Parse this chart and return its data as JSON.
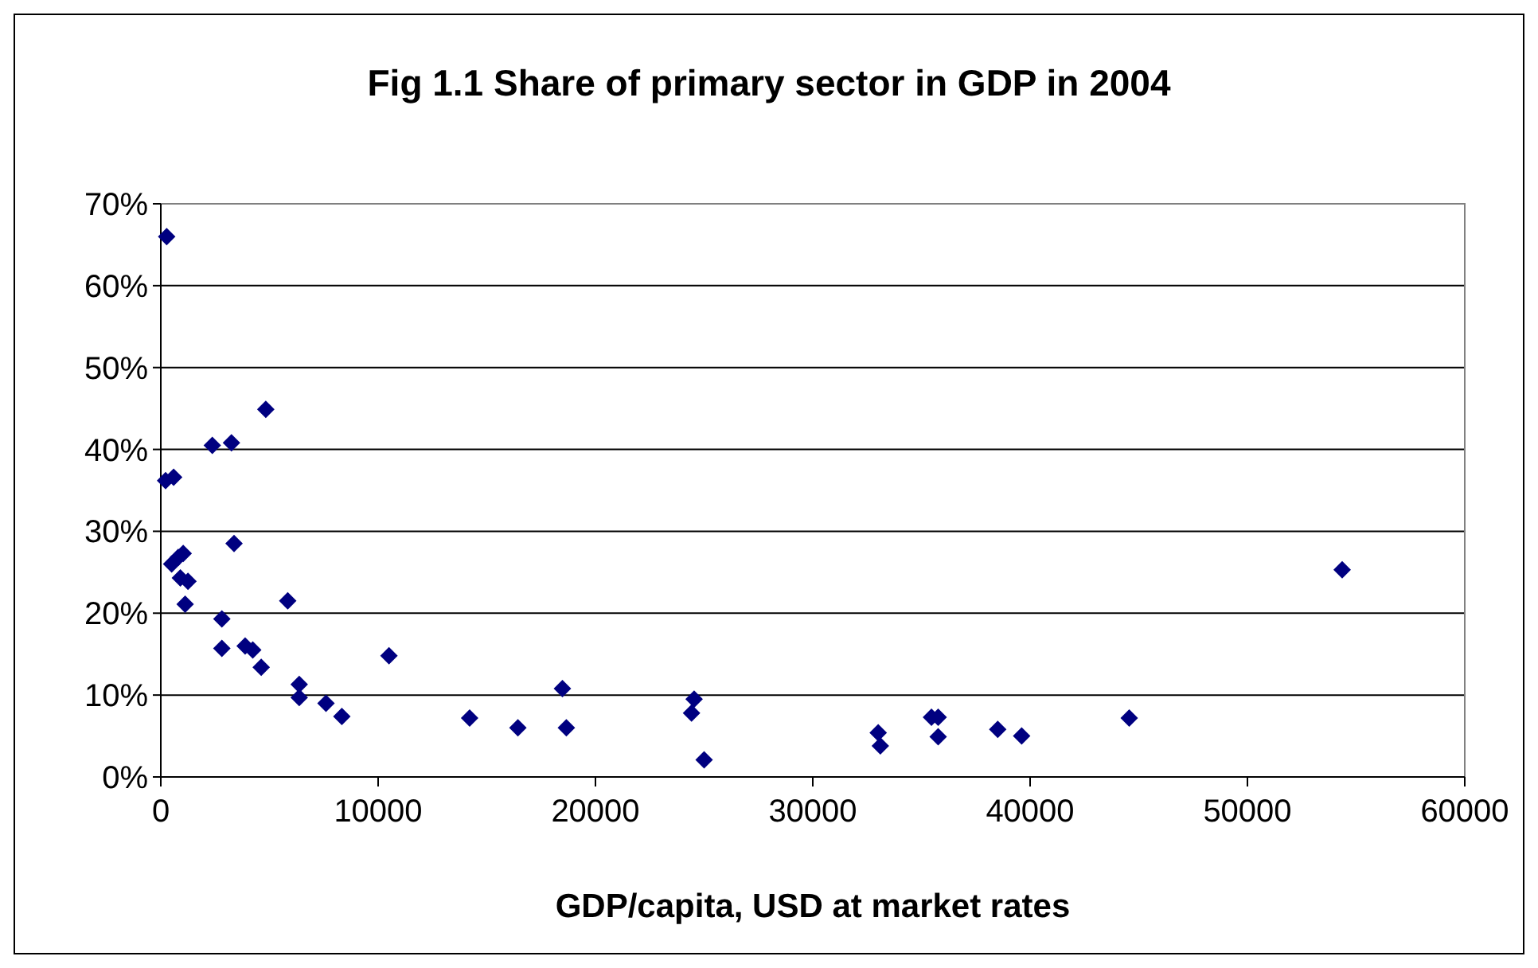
{
  "chart_data": {
    "type": "scatter",
    "title": "Fig 1.1 Share of primary sector in GDP in 2004",
    "xlabel": "GDP/capita, USD at market rates",
    "x": [
      270,
      4830,
      2370,
      3250,
      220,
      590,
      3370,
      1030,
      500,
      800,
      900,
      1250,
      1120,
      5840,
      2810,
      2810,
      3880,
      4230,
      4620,
      10500,
      6370,
      6370,
      7600,
      8330,
      14210,
      16430,
      18480,
      18660,
      24540,
      24420,
      25000,
      33010,
      33110,
      35460,
      35770,
      35770,
      38510,
      39610,
      44560,
      54360
    ],
    "values": [
      66.0,
      44.9,
      40.5,
      40.8,
      36.2,
      36.6,
      28.5,
      27.3,
      26.0,
      26.8,
      24.3,
      23.9,
      21.1,
      21.5,
      19.3,
      15.7,
      16.0,
      15.5,
      13.4,
      14.8,
      11.3,
      9.7,
      9.0,
      7.4,
      7.2,
      6.0,
      10.8,
      6.0,
      9.5,
      7.8,
      2.1,
      5.4,
      3.8,
      7.3,
      7.3,
      4.9,
      5.8,
      5.0,
      7.2,
      25.3
    ],
    "color": "#000080",
    "marker": "diamond",
    "grid": "y",
    "xlim": [
      0,
      60000
    ],
    "xticks": [
      0,
      10000,
      20000,
      30000,
      40000,
      50000,
      60000
    ],
    "ylim": [
      0,
      70
    ],
    "yticks": [
      {
        "value": 0,
        "label": "0%"
      },
      {
        "value": 10,
        "label": "10%"
      },
      {
        "value": 20,
        "label": "20%"
      },
      {
        "value": 30,
        "label": "30%"
      },
      {
        "value": 40,
        "label": "40%"
      },
      {
        "value": 50,
        "label": "50%"
      },
      {
        "value": 60,
        "label": "60%"
      },
      {
        "value": 70,
        "label": "70%"
      }
    ]
  }
}
